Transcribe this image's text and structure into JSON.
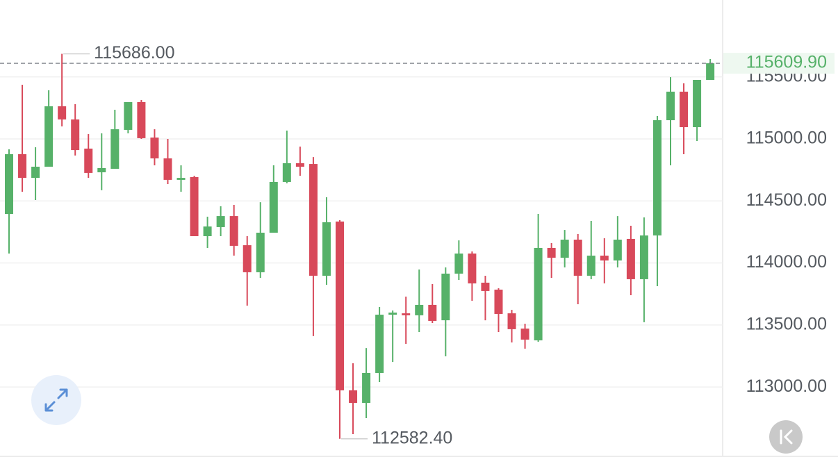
{
  "chart_data": {
    "type": "candlestick",
    "up_color": "#56b169",
    "down_color": "#d8495a",
    "grid": true,
    "ylim": [
      112452,
      116120
    ],
    "yticks": [
      {
        "value": 113000,
        "label": "113000.00"
      },
      {
        "value": 113500,
        "label": "113500.00"
      },
      {
        "value": 114000,
        "label": "114000.00"
      },
      {
        "value": 114500,
        "label": "114500.00"
      },
      {
        "value": 115000,
        "label": "115000.00"
      },
      {
        "value": 115500,
        "label": "115500.00"
      }
    ],
    "open": [
      114395,
      114877,
      114686,
      114776,
      115263,
      115157,
      114922,
      114731,
      114759,
      115073,
      115297,
      115011,
      114843,
      114670,
      114692,
      114216,
      114289,
      114378,
      114143,
      113925,
      114244,
      114653,
      114804,
      114798,
      113897,
      114334,
      112973,
      112872,
      113113,
      113583,
      113594,
      113578,
      113662,
      113538,
      113914,
      114076,
      113841,
      113785,
      113594,
      113471,
      113376,
      114121,
      114042,
      114188,
      113897,
      114059,
      114020,
      114194,
      113869,
      114222,
      115151,
      115381,
      115095,
      115476
    ],
    "high": [
      114916,
      115437,
      114933,
      115392,
      115686,
      115280,
      115039,
      115045,
      115235,
      115297,
      115314,
      115078,
      115000,
      114787,
      114703,
      114373,
      114457,
      114468,
      114216,
      114490,
      114787,
      115067,
      114938,
      114854,
      114530,
      114345,
      113191,
      113314,
      113645,
      113617,
      113729,
      113947,
      113830,
      113964,
      114182,
      114093,
      113897,
      113796,
      113622,
      113510,
      114395,
      114160,
      114266,
      114233,
      114339,
      114199,
      114378,
      114300,
      114367,
      115185,
      115498,
      115448,
      115476,
      115644
    ],
    "low": [
      114076,
      114574,
      114507,
      114776,
      115101,
      114866,
      114686,
      114586,
      114759,
      115045,
      115000,
      114787,
      114636,
      114574,
      114216,
      114121,
      114216,
      114059,
      113656,
      113880,
      114244,
      114642,
      114703,
      113410,
      113824,
      112582.4,
      112620,
      112749,
      113040,
      113202,
      113348,
      113443,
      113516,
      113247,
      113863,
      113695,
      113538,
      113443,
      113359,
      113309,
      113365,
      113880,
      113964,
      113667,
      113869,
      113835,
      113964,
      113740,
      113522,
      113813,
      114787,
      114877,
      114983,
      115476
    ],
    "close": [
      114877,
      114686,
      114776,
      115263,
      115157,
      114910,
      114726,
      114765,
      115078,
      115297,
      115006,
      114843,
      114670,
      114686,
      114216,
      114294,
      114378,
      114138,
      113925,
      114244,
      114653,
      114804,
      114776,
      113897,
      114328,
      112973,
      112872,
      113113,
      113583,
      113600,
      113578,
      113662,
      113533,
      113914,
      114076,
      113835,
      113774,
      113589,
      113466,
      113382,
      114121,
      114042,
      114188,
      113897,
      114059,
      114020,
      114188,
      113869,
      114222,
      115151,
      115381,
      115095,
      115476,
      115609.9
    ],
    "annotations": [
      {
        "value": 115686,
        "label": "115686.00"
      },
      {
        "value": 112582.4,
        "label": "112582.40"
      }
    ],
    "last_price": {
      "value": 115609.9,
      "label": "115609.90"
    }
  }
}
